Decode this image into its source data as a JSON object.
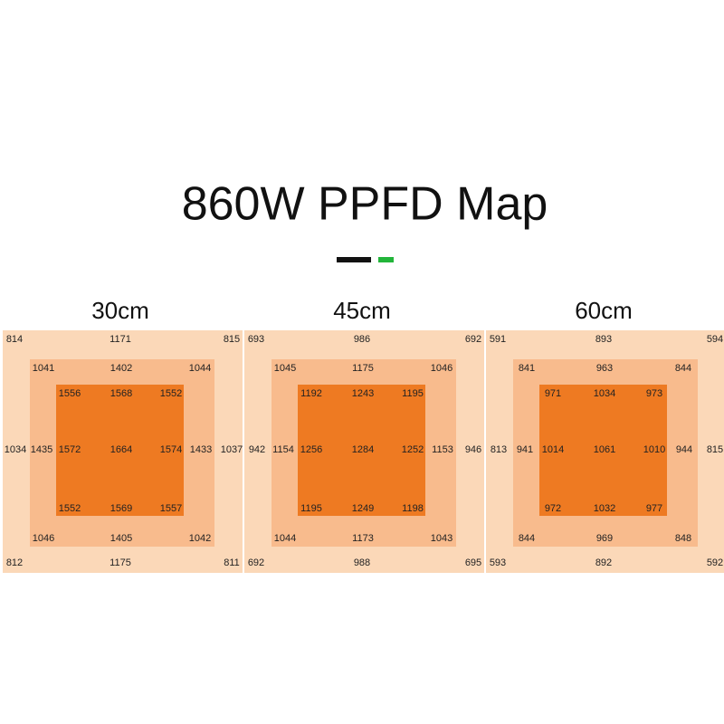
{
  "title": "860W PPFD Map",
  "maps": [
    {
      "label": "30cm",
      "outer": [
        814,
        1171,
        815,
        1034,
        1037,
        812,
        1175,
        811
      ],
      "middle": [
        1041,
        1402,
        1044,
        1435,
        1433,
        1046,
        1405,
        1042
      ],
      "inner": [
        1556,
        1568,
        1552,
        1572,
        1664,
        1574,
        1552,
        1569,
        1557
      ]
    },
    {
      "label": "45cm",
      "outer": [
        693,
        986,
        692,
        942,
        946,
        692,
        988,
        695
      ],
      "middle": [
        1045,
        1175,
        1046,
        1154,
        1153,
        1044,
        1173,
        1043
      ],
      "inner": [
        1192,
        1243,
        1195,
        1256,
        1284,
        1252,
        1195,
        1249,
        1198
      ]
    },
    {
      "label": "60cm",
      "outer": [
        591,
        893,
        594,
        813,
        815,
        593,
        892,
        592
      ],
      "middle": [
        841,
        963,
        844,
        941,
        944,
        844,
        969,
        848
      ],
      "inner": [
        971,
        1034,
        973,
        1014,
        1061,
        1010,
        972,
        1032,
        977
      ]
    }
  ]
}
